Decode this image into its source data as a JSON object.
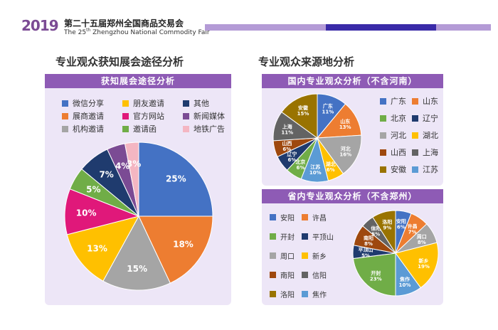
{
  "header": {
    "logo_text": "2019",
    "title_cn": "第二十五届郑州全国商品交易会",
    "title_en_pre": "The 25",
    "title_en_sup": "th",
    "title_en_post": " Zhengzhou National Commodity Fair"
  },
  "left_section": {
    "title": "专业观众获知展会途径分析"
  },
  "right_section": {
    "title": "专业观众来源地分析"
  },
  "colors": {
    "blue": "#4472c4",
    "orange": "#ed7d31",
    "gray": "#a5a5a5",
    "yellow": "#ffc000",
    "navy": "#1f3b6e",
    "green": "#70ad47",
    "magenta": "#e0187a",
    "purple": "#7b4b94",
    "pink": "#f4b6c2",
    "brown": "#9e480e",
    "darkgray": "#636363",
    "olive": "#997300",
    "lightblue": "#5b9bd5"
  },
  "chart_data": [
    {
      "type": "pie",
      "title": "获知展会途径分析",
      "labels": [
        "微信分享",
        "展商邀请",
        "机构邀请",
        "朋友邀请",
        "官方网站",
        "邀请函",
        "其他",
        "新闻媒体",
        "地铁广告"
      ],
      "values": [
        25,
        18,
        15,
        13,
        10,
        5,
        7,
        4,
        3
      ],
      "value_labels": [
        "25%",
        "18%",
        "15%",
        "13%",
        "10%",
        "5%",
        "7%",
        "4%",
        "3%"
      ],
      "colors": [
        "#4472c4",
        "#ed7d31",
        "#a5a5a5",
        "#ffc000",
        "#e0187a",
        "#70ad47",
        "#1f3b6e",
        "#7b4b94",
        "#f4b6c2"
      ],
      "legend": [
        [
          "微信分享",
          "朋友邀请",
          "其他"
        ],
        [
          "展商邀请",
          "官方网站",
          "新闻媒体"
        ],
        [
          "机构邀请",
          "邀请函",
          "地铁广告"
        ]
      ],
      "legend_colors": [
        [
          "#4472c4",
          "#ffc000",
          "#1f3b6e"
        ],
        [
          "#ed7d31",
          "#e0187a",
          "#7b4b94"
        ],
        [
          "#a5a5a5",
          "#70ad47",
          "#f4b6c2"
        ]
      ]
    },
    {
      "type": "pie",
      "title": "国内专业观众分析（不含河南）",
      "labels": [
        "广东",
        "山东",
        "河北",
        "湖北",
        "江苏",
        "北京",
        "辽宁",
        "山西",
        "上海",
        "安徽"
      ],
      "values": [
        11,
        13,
        16,
        6,
        10,
        6,
        6,
        6,
        11,
        15
      ],
      "value_labels": [
        "11%",
        "13%",
        "16%",
        "6%",
        "10%",
        "6%",
        "6%",
        "6%",
        "11%",
        "15%"
      ],
      "colors": [
        "#4472c4",
        "#ed7d31",
        "#a5a5a5",
        "#ffc000",
        "#5b9bd5",
        "#70ad47",
        "#1f3b6e",
        "#9e480e",
        "#636363",
        "#997300"
      ],
      "legend": [
        [
          "广东",
          "山东"
        ],
        [
          "北京",
          "辽宁"
        ],
        [
          "河北",
          "湖北"
        ],
        [
          "山西",
          "上海"
        ],
        [
          "安徽",
          "江苏"
        ]
      ],
      "legend_colors": [
        [
          "#4472c4",
          "#ed7d31"
        ],
        [
          "#70ad47",
          "#1f3b6e"
        ],
        [
          "#a5a5a5",
          "#ffc000"
        ],
        [
          "#9e480e",
          "#636363"
        ],
        [
          "#997300",
          "#5b9bd5"
        ]
      ]
    },
    {
      "type": "pie",
      "title": "省内专业观众分析（不含郑州）",
      "labels": [
        "安阳",
        "许昌",
        "周口",
        "新乡",
        "焦作",
        "开封",
        "平顶山",
        "南阳",
        "信阳",
        "洛阳"
      ],
      "values": [
        6,
        7,
        8,
        19,
        10,
        23,
        5,
        8,
        5,
        9
      ],
      "value_labels": [
        "6%",
        "7%",
        "8%",
        "19%",
        "10%",
        "23%",
        "5%",
        "8%",
        "5%",
        "9%"
      ],
      "colors": [
        "#4472c4",
        "#ed7d31",
        "#a5a5a5",
        "#ffc000",
        "#5b9bd5",
        "#70ad47",
        "#1f3b6e",
        "#9e480e",
        "#636363",
        "#997300"
      ],
      "legend": [
        [
          "安阳",
          "许昌"
        ],
        [
          "开封",
          "平顶山"
        ],
        [
          "周口",
          "新乡"
        ],
        [
          "南阳",
          "信阳"
        ],
        [
          "洛阳",
          "焦作"
        ]
      ],
      "legend_colors": [
        [
          "#4472c4",
          "#ed7d31"
        ],
        [
          "#70ad47",
          "#1f3b6e"
        ],
        [
          "#a5a5a5",
          "#ffc000"
        ],
        [
          "#9e480e",
          "#636363"
        ],
        [
          "#997300",
          "#5b9bd5"
        ]
      ]
    }
  ]
}
